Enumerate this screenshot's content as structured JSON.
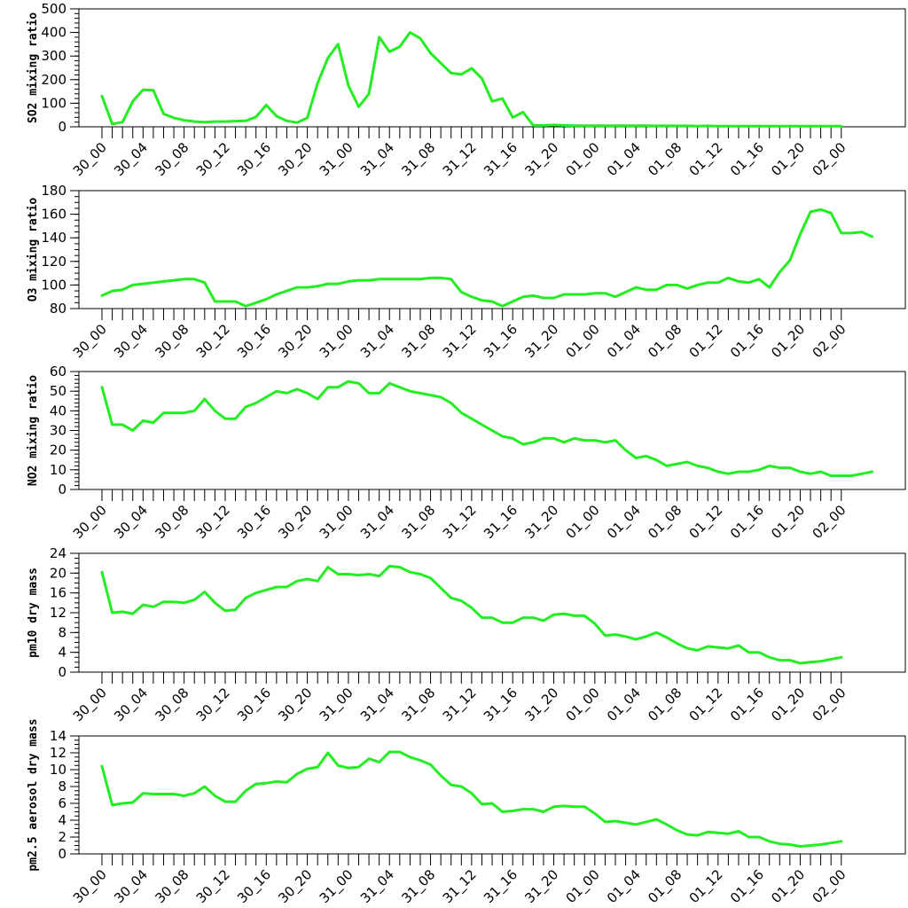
{
  "chart_data": [
    {
      "type": "line",
      "ylabel": "SO2 mixing ratio",
      "ylim": [
        0,
        500
      ],
      "yticks": [
        0,
        100,
        200,
        300,
        400,
        500
      ],
      "yminor_step": 20,
      "xlim": [
        0,
        72
      ],
      "xtick_labels": [
        "30_00",
        "30_04",
        "30_08",
        "30_12",
        "30_16",
        "30_20",
        "31_00",
        "31_04",
        "31_08",
        "31_12",
        "31_16",
        "31_20",
        "01_00",
        "01_04",
        "01_08",
        "01_12",
        "01_16",
        "01_20",
        "02_00"
      ],
      "xtick_step": 4,
      "grid": false,
      "color": "#22ee22",
      "values": [
        130,
        12,
        20,
        108,
        157,
        155,
        55,
        38,
        28,
        22,
        20,
        22,
        22,
        24,
        25,
        42,
        92,
        45,
        25,
        18,
        38,
        185,
        292,
        350,
        175,
        85,
        140,
        380,
        318,
        340,
        400,
        375,
        312,
        270,
        228,
        222,
        248,
        205,
        108,
        120,
        40,
        62,
        6,
        6,
        8,
        6,
        5,
        5,
        5,
        5,
        5,
        5,
        5,
        5,
        4,
        4,
        4,
        4,
        3,
        4,
        3,
        3,
        3,
        3,
        3,
        3,
        3,
        3,
        3,
        3,
        3,
        3,
        3
      ]
    },
    {
      "type": "line",
      "ylabel": "O3 mixing ratio",
      "ylim": [
        80,
        180
      ],
      "yticks": [
        80,
        100,
        120,
        140,
        160,
        180
      ],
      "yminor_step": 5,
      "xlim": [
        0,
        72
      ],
      "xtick_labels": [
        "30_00",
        "30_04",
        "30_08",
        "30_12",
        "30_16",
        "30_20",
        "31_00",
        "31_04",
        "31_08",
        "31_12",
        "31_16",
        "31_20",
        "01_00",
        "01_04",
        "01_08",
        "01_12",
        "01_16",
        "01_20",
        "02_00"
      ],
      "xtick_step": 4,
      "grid": false,
      "color": "#22ee22",
      "values": [
        91,
        95,
        96,
        100,
        101,
        102,
        103,
        104,
        105,
        105,
        102,
        86,
        86,
        86,
        82,
        85,
        88,
        92,
        95,
        98,
        98,
        99,
        101,
        101,
        103,
        104,
        104,
        105,
        105,
        105,
        105,
        105,
        106,
        106,
        105,
        94,
        90,
        87,
        86,
        82,
        86,
        90,
        91,
        89,
        89,
        92,
        92,
        92,
        93,
        93,
        90,
        94,
        98,
        96,
        96,
        100,
        100,
        97,
        100,
        102,
        102,
        106,
        103,
        102,
        105,
        98,
        111,
        121,
        143,
        162,
        164,
        161,
        144,
        144,
        145,
        141
      ]
    },
    {
      "type": "line",
      "ylabel": "NO2 mixing ratio",
      "ylim": [
        0,
        60
      ],
      "yticks": [
        0,
        10,
        20,
        30,
        40,
        50,
        60
      ],
      "yminor_step": 2,
      "xlim": [
        0,
        72
      ],
      "xtick_labels": [
        "30_00",
        "30_04",
        "30_08",
        "30_12",
        "30_16",
        "30_20",
        "31_00",
        "31_04",
        "31_08",
        "31_12",
        "31_16",
        "31_20",
        "01_00",
        "01_04",
        "01_08",
        "01_12",
        "01_16",
        "01_20",
        "02_00"
      ],
      "xtick_step": 4,
      "grid": false,
      "color": "#22ee22",
      "values": [
        52,
        33,
        33,
        30,
        35,
        34,
        39,
        39,
        39,
        40,
        46,
        40,
        36,
        36,
        42,
        44,
        47,
        50,
        49,
        51,
        49,
        46,
        52,
        52,
        55,
        54,
        49,
        49,
        54,
        52,
        50,
        49,
        48,
        47,
        44,
        39,
        36,
        33,
        30,
        27,
        26,
        23,
        24,
        26,
        26,
        24,
        26,
        25,
        25,
        24,
        25,
        20,
        16,
        17,
        15,
        12,
        13,
        14,
        12,
        11,
        9,
        8,
        9,
        9,
        10,
        12,
        11,
        11,
        9,
        8,
        9,
        7,
        7,
        7,
        8,
        9
      ]
    },
    {
      "type": "line",
      "ylabel": "pm10 dry mass",
      "ylim": [
        0,
        24
      ],
      "yticks": [
        0,
        4,
        8,
        12,
        16,
        20,
        24
      ],
      "yminor_step": 1,
      "xlim": [
        0,
        72
      ],
      "xtick_labels": [
        "30_00",
        "30_04",
        "30_08",
        "30_12",
        "30_16",
        "30_20",
        "31_00",
        "31_04",
        "31_08",
        "31_12",
        "31_16",
        "31_20",
        "01_00",
        "01_04",
        "01_08",
        "01_12",
        "01_16",
        "01_20",
        "02_00"
      ],
      "xtick_step": 4,
      "grid": false,
      "color": "#22ee22",
      "values": [
        20.2,
        12,
        12.2,
        11.8,
        13.6,
        13.2,
        14.2,
        14.2,
        14,
        14.6,
        16.2,
        14,
        12.4,
        12.6,
        15,
        16,
        16.6,
        17.2,
        17.2,
        18.4,
        18.8,
        18.4,
        21.2,
        19.8,
        19.8,
        19.6,
        19.8,
        19.4,
        21.4,
        21.2,
        20.2,
        19.8,
        19,
        17,
        15,
        14.4,
        13,
        11,
        11,
        10,
        10,
        11,
        11,
        10.4,
        11.6,
        11.8,
        11.4,
        11.4,
        9.8,
        7.4,
        7.6,
        7.2,
        6.6,
        7.2,
        8,
        7,
        5.8,
        4.8,
        4.4,
        5.2,
        5,
        4.8,
        5.4,
        4,
        4,
        3,
        2.4,
        2.4,
        1.8,
        2,
        2.2,
        2.6,
        3
      ]
    },
    {
      "type": "line",
      "ylabel": "pm2.5 aerosol dry mass",
      "ylim": [
        0,
        14
      ],
      "yticks": [
        0,
        2,
        4,
        6,
        8,
        10,
        12,
        14
      ],
      "yminor_step": 0.5,
      "xlim": [
        0,
        72
      ],
      "xtick_labels": [
        "30_00",
        "30_04",
        "30_08",
        "30_12",
        "30_16",
        "30_20",
        "31_00",
        "31_04",
        "31_08",
        "31_12",
        "31_16",
        "31_20",
        "01_00",
        "01_04",
        "01_08",
        "01_12",
        "01_16",
        "01_20",
        "02_00"
      ],
      "xtick_step": 4,
      "grid": false,
      "color": "#22ee22",
      "values": [
        10.4,
        5.8,
        6,
        6.1,
        7.2,
        7.1,
        7.1,
        7.1,
        6.9,
        7.2,
        8,
        6.9,
        6.2,
        6.2,
        7.5,
        8.3,
        8.4,
        8.6,
        8.5,
        9.5,
        10.1,
        10.3,
        12,
        10.5,
        10.2,
        10.3,
        11.3,
        10.9,
        12.1,
        12.1,
        11.5,
        11.1,
        10.6,
        9.3,
        8.2,
        8,
        7.2,
        5.9,
        6,
        5,
        5.1,
        5.3,
        5.3,
        5,
        5.6,
        5.7,
        5.6,
        5.6,
        4.8,
        3.8,
        3.9,
        3.7,
        3.5,
        3.8,
        4.1,
        3.5,
        2.8,
        2.3,
        2.2,
        2.6,
        2.5,
        2.4,
        2.7,
        2,
        2,
        1.5,
        1.2,
        1.1,
        0.9,
        1,
        1.1,
        1.3,
        1.5
      ]
    }
  ]
}
